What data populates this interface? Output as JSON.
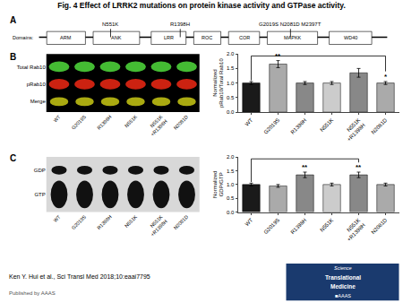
{
  "title": "Fig. 4 Effect of LRRK2 mutations on protein kinase activity and GTPase activity.",
  "chart_data": [
    {
      "type": "diagram",
      "title": "A",
      "domain_label": "Domains:",
      "domains": [
        "ARM",
        "ANK",
        "LRR",
        "ROC",
        "COR",
        "MAPKK",
        "WD40"
      ],
      "mutations": [
        "N551K",
        "R1398H",
        "G2019S N2081D M2397T"
      ]
    },
    {
      "type": "bar",
      "title": "B",
      "categories": [
        "WT",
        "G2019S",
        "R1398H",
        "N551K",
        "N551K\n+R1398H",
        "N2081D"
      ],
      "values": [
        1.0,
        1.65,
        1.0,
        1.0,
        1.35,
        1.0
      ],
      "errors": [
        0.05,
        0.12,
        0.05,
        0.05,
        0.15,
        0.05
      ],
      "colors": [
        "#1a1a1a",
        "#aaaaaa",
        "#888888",
        "#cccccc",
        "#888888",
        "#aaaaaa"
      ],
      "ylabel": "Normalized\npRab10/Total Rab10",
      "ylim": [
        0,
        2.0
      ],
      "yticks": [
        {
          "value": 0,
          "label": "0.0"
        },
        0.5,
        {
          "value": 1.0,
          "label": "1.0"
        },
        1.5,
        {
          "value": 2.0,
          "label": "2.0"
        }
      ],
      "grid": false,
      "annotations": [
        {
          "text": "**",
          "category": "G2019S"
        },
        {
          "text": "*",
          "category": "N2081D"
        }
      ],
      "brackets": [
        {
          "from": "WT",
          "to": "N2081D",
          "y": 1.93
        }
      ],
      "blot_rows": [
        {
          "name": "Total Rab10",
          "color": "#44bb33"
        },
        {
          "name": "pRab10",
          "color": "#cc2211"
        },
        {
          "name": "Merge",
          "color": "#aaaa11"
        }
      ]
    },
    {
      "type": "bar",
      "title": "C",
      "categories": [
        "WT",
        "G2019S",
        "R1398H",
        "N551K",
        "N551K\n+R1398H",
        "N2081D"
      ],
      "values": [
        1.0,
        0.95,
        1.35,
        1.0,
        1.35,
        1.0
      ],
      "errors": [
        0.05,
        0.05,
        0.1,
        0.05,
        0.1,
        0.05
      ],
      "colors": [
        "#1a1a1a",
        "#aaaaaa",
        "#888888",
        "#cccccc",
        "#888888",
        "#aaaaaa"
      ],
      "ylabel": "Normalized\nGDP/GTP",
      "ylim": [
        0,
        2.0
      ],
      "yticks": [
        {
          "value": 0,
          "label": "0.0"
        },
        0.5,
        {
          "value": 1.0,
          "label": "1.0"
        },
        1.5,
        {
          "value": 2.0,
          "label": "2.0"
        }
      ],
      "grid": false,
      "annotations": [
        {
          "text": "**",
          "category": "R1398H"
        },
        {
          "text": "**",
          "category": "N551K\n+R1398H"
        }
      ],
      "brackets": [
        {
          "from": "WT",
          "to": "N551K\n+R1398H",
          "y": 1.93
        }
      ],
      "blot_rows": [
        {
          "name": "GDP",
          "color": "#111111"
        },
        {
          "name": "GTP",
          "color": "#111111"
        }
      ]
    }
  ],
  "notes": [
    "Ken Y. Hui et al., Sci Transl Med 2018;10:eaai7795",
    "Published by AAAS"
  ],
  "logo": [
    "Science",
    "Translational",
    "Medicine",
    "■AAAS"
  ]
}
